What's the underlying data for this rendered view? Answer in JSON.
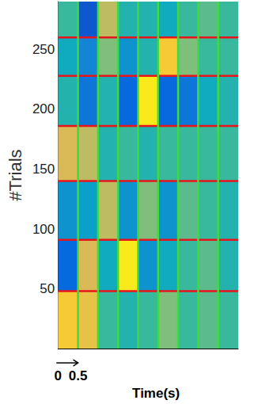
{
  "chart_data": {
    "type": "heatmap",
    "ylabel": "#Trials",
    "xlabel": "Time(s)",
    "xlim": [
      0,
      4.5
    ],
    "xticks": [
      0,
      0.5
    ],
    "ylim": [
      0,
      290
    ],
    "yticks": [
      50,
      100,
      150,
      200,
      250
    ],
    "bin_edges": [
      0,
      0.5,
      1,
      1.5,
      2,
      2.5,
      3,
      3.5,
      4,
      4.5
    ],
    "block_edges": [
      0,
      48,
      91,
      140,
      186,
      228,
      260,
      290
    ],
    "color_range": [
      0,
      1
    ],
    "cells": [
      [
        0.85,
        0.8,
        0.5,
        0.45,
        0.5,
        0.6,
        0.5,
        0.55,
        0.5
      ],
      [
        0.15,
        0.75,
        0.4,
        0.95,
        0.3,
        0.4,
        0.5,
        0.55,
        0.45
      ],
      [
        0.3,
        0.35,
        0.7,
        0.3,
        0.6,
        0.3,
        0.55,
        0.5,
        0.45
      ],
      [
        0.75,
        0.7,
        0.45,
        0.5,
        0.45,
        0.5,
        0.5,
        0.5,
        0.5
      ],
      [
        0.45,
        0.2,
        0.45,
        0.15,
        0.95,
        0.15,
        0.2,
        0.4,
        0.45
      ],
      [
        0.4,
        0.25,
        0.6,
        0.3,
        0.45,
        0.85,
        0.6,
        0.5,
        0.5
      ],
      [
        0.5,
        0.1,
        0.7,
        0.45,
        0.45,
        0.4,
        0.5,
        0.55,
        0.5
      ]
    ]
  }
}
